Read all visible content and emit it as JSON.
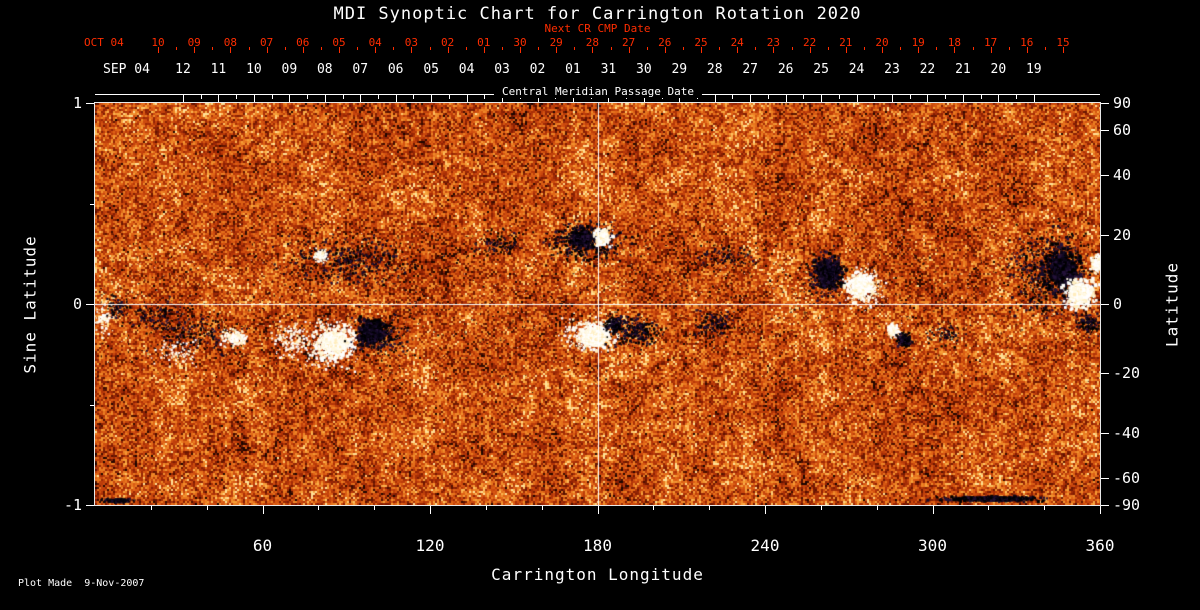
{
  "title": "MDI Synoptic Chart for Carrington Rotation 2020",
  "plot_made": "Plot Made  9-Nov-2007",
  "colors": {
    "background": "#000000",
    "foreground": "#ffffff",
    "next_cr_red": "#ff2d00"
  },
  "chart_data": {
    "type": "heatmap",
    "title": "MDI Synoptic Chart for Carrington Rotation 2020",
    "xlabel": "Carrington Longitude",
    "ylabel_left": "Sine Latitude",
    "ylabel_right": "Latitude",
    "xlim": [
      0,
      360
    ],
    "ylim_sine_latitude": [
      -1,
      1
    ],
    "x_ticks": [
      60,
      120,
      180,
      240,
      300,
      360
    ],
    "x_minor_step": 20,
    "y_left_ticks": [
      1,
      0,
      -1
    ],
    "y_left_minor_ticks": [
      0.5,
      -0.5
    ],
    "y_right_ticks": [
      90,
      60,
      40,
      20,
      0,
      -20,
      -40,
      -60,
      -90
    ],
    "top_axis": {
      "label": "Central Meridian Passage Date",
      "month_label": "SEP 04",
      "day_labels": [
        "12",
        "11",
        "10",
        "09",
        "08",
        "07",
        "06",
        "05",
        "04",
        "03",
        "02",
        "01",
        "31",
        "30",
        "29",
        "28",
        "27",
        "26",
        "25",
        "24",
        "23",
        "22",
        "21",
        "20",
        "19"
      ]
    },
    "next_cr_axis": {
      "label": "Next CR CMP Date",
      "month_label": "OCT 04",
      "day_labels": [
        "10",
        "09",
        "08",
        "07",
        "06",
        "05",
        "04",
        "03",
        "02",
        "01",
        "30",
        "29",
        "28",
        "27",
        "26",
        "25",
        "24",
        "23",
        "22",
        "21",
        "20",
        "19",
        "18",
        "17",
        "16",
        "15"
      ]
    },
    "crosshair": {
      "longitude": 180,
      "sine_latitude": 0
    },
    "colormap_description": "orange-red quiet-sun noise; white = positive magnetic polarity, black/dark-violet = negative polarity",
    "colormap_stops": [
      [
        0.0,
        "#1d0500"
      ],
      [
        0.1,
        "#5f1300"
      ],
      [
        0.22,
        "#8c2004"
      ],
      [
        0.36,
        "#b03307"
      ],
      [
        0.52,
        "#cc4a0e"
      ],
      [
        0.66,
        "#e06416"
      ],
      [
        0.79,
        "#ec8124"
      ],
      [
        0.9,
        "#f7a23a"
      ],
      [
        0.965,
        "#ffc465"
      ],
      [
        1.0,
        "#ffe197"
      ]
    ],
    "active_regions": [
      {
        "lon": 90,
        "slat": 0.22,
        "rlon": 26,
        "rslat": 0.14,
        "pol": "neg",
        "n": 420,
        "size": 1.6
      },
      {
        "lon": 81,
        "slat": 0.24,
        "rlon": 2.5,
        "rslat": 0.035,
        "pol": "pos",
        "n": 110,
        "size": 1.6
      },
      {
        "lon": 86,
        "slat": -0.19,
        "rlon": 8,
        "rslat": 0.085,
        "pol": "pos",
        "n": 950,
        "size": 2.6
      },
      {
        "lon": 84,
        "slat": -0.2,
        "rlon": 13,
        "rslat": 0.13,
        "pol": "pos",
        "n": 300,
        "size": 1.6
      },
      {
        "lon": 99,
        "slat": -0.14,
        "rlon": 6.5,
        "rslat": 0.075,
        "pol": "neg",
        "n": 750,
        "size": 2.6
      },
      {
        "lon": 102,
        "slat": -0.17,
        "rlon": 11,
        "rslat": 0.11,
        "pol": "neg",
        "n": 240,
        "size": 1.6
      },
      {
        "lon": 70,
        "slat": -0.18,
        "rlon": 8,
        "rslat": 0.1,
        "pol": "pos",
        "n": 140,
        "size": 1.6
      },
      {
        "lon": 38,
        "slat": -0.15,
        "rlon": 20,
        "rslat": 0.13,
        "pol": "neg",
        "n": 230,
        "size": 1.5
      },
      {
        "lon": 50,
        "slat": -0.17,
        "rlon": 5,
        "rslat": 0.05,
        "pol": "pos",
        "n": 170,
        "size": 1.8
      },
      {
        "lon": 22,
        "slat": -0.05,
        "rlon": 12,
        "rslat": 0.1,
        "pol": "neg",
        "n": 110,
        "size": 1.5
      },
      {
        "lon": 30,
        "slat": -0.24,
        "rlon": 10,
        "rslat": 0.07,
        "pol": "pos",
        "n": 90,
        "size": 1.4
      },
      {
        "lon": 3,
        "slat": -0.07,
        "rlon": 4,
        "rslat": 0.09,
        "pol": "pos",
        "n": 80,
        "size": 1.6
      },
      {
        "lon": 8,
        "slat": -0.02,
        "rlon": 5,
        "rslat": 0.07,
        "pol": "neg",
        "n": 70,
        "size": 1.5
      },
      {
        "lon": 145,
        "slat": 0.3,
        "rlon": 10,
        "rslat": 0.08,
        "pol": "neg",
        "n": 110,
        "size": 1.4
      },
      {
        "lon": 176,
        "slat": 0.31,
        "rlon": 15,
        "rslat": 0.11,
        "pol": "neg",
        "n": 420,
        "size": 1.7
      },
      {
        "lon": 174,
        "slat": 0.33,
        "rlon": 5,
        "rslat": 0.06,
        "pol": "neg",
        "n": 480,
        "size": 2.4
      },
      {
        "lon": 182,
        "slat": 0.33,
        "rlon": 3.5,
        "rslat": 0.05,
        "pol": "pos",
        "n": 430,
        "size": 2.4
      },
      {
        "lon": 179,
        "slat": -0.16,
        "rlon": 7,
        "rslat": 0.07,
        "pol": "pos",
        "n": 780,
        "size": 2.6
      },
      {
        "lon": 177,
        "slat": -0.15,
        "rlon": 11,
        "rslat": 0.1,
        "pol": "pos",
        "n": 240,
        "size": 1.6
      },
      {
        "lon": 193,
        "slat": -0.14,
        "rlon": 10,
        "rslat": 0.09,
        "pol": "neg",
        "n": 260,
        "size": 1.6
      },
      {
        "lon": 186,
        "slat": -0.1,
        "rlon": 4,
        "rslat": 0.05,
        "pol": "neg",
        "n": 150,
        "size": 1.8
      },
      {
        "lon": 222,
        "slat": -0.1,
        "rlon": 8,
        "rslat": 0.08,
        "pol": "neg",
        "n": 150,
        "size": 1.4
      },
      {
        "lon": 227,
        "slat": 0.24,
        "rlon": 12,
        "rslat": 0.08,
        "pol": "neg",
        "n": 120,
        "size": 1.3
      },
      {
        "lon": 263,
        "slat": 0.15,
        "rlon": 6,
        "rslat": 0.1,
        "pol": "neg",
        "n": 680,
        "size": 2.6
      },
      {
        "lon": 262,
        "slat": 0.14,
        "rlon": 10,
        "rslat": 0.14,
        "pol": "neg",
        "n": 220,
        "size": 1.5
      },
      {
        "lon": 274,
        "slat": 0.09,
        "rlon": 6,
        "rslat": 0.08,
        "pol": "pos",
        "n": 620,
        "size": 2.6
      },
      {
        "lon": 276,
        "slat": 0.08,
        "rlon": 9,
        "rslat": 0.11,
        "pol": "pos",
        "n": 180,
        "size": 1.5
      },
      {
        "lon": 286,
        "slat": -0.13,
        "rlon": 2.5,
        "rslat": 0.04,
        "pol": "pos",
        "n": 150,
        "size": 1.8
      },
      {
        "lon": 290,
        "slat": -0.18,
        "rlon": 3,
        "rslat": 0.04,
        "pol": "neg",
        "n": 150,
        "size": 1.8
      },
      {
        "lon": 305,
        "slat": -0.15,
        "rlon": 8,
        "rslat": 0.08,
        "pol": "neg",
        "n": 80,
        "size": 1.3
      },
      {
        "lon": 342,
        "slat": 0.16,
        "rlon": 16,
        "rslat": 0.25,
        "pol": "neg",
        "n": 620,
        "size": 1.7
      },
      {
        "lon": 347,
        "slat": 0.17,
        "rlon": 8,
        "rslat": 0.13,
        "pol": "neg",
        "n": 900,
        "size": 2.6
      },
      {
        "lon": 353,
        "slat": 0.05,
        "rlon": 6.5,
        "rslat": 0.085,
        "pol": "pos",
        "n": 820,
        "size": 2.6
      },
      {
        "lon": 359,
        "slat": 0.2,
        "rlon": 2.5,
        "rslat": 0.05,
        "pol": "pos",
        "n": 160,
        "size": 1.8
      },
      {
        "lon": 356,
        "slat": -0.1,
        "rlon": 5,
        "rslat": 0.06,
        "pol": "neg",
        "n": 140,
        "size": 1.5
      },
      {
        "lon": 322,
        "slat": -0.97,
        "rlon": 20,
        "rslat": 0.015,
        "pol": "neg",
        "n": 850,
        "size": 2.2
      },
      {
        "lon": 8,
        "slat": -0.98,
        "rlon": 6,
        "rslat": 0.012,
        "pol": "neg",
        "n": 140,
        "size": 1.8
      }
    ]
  }
}
